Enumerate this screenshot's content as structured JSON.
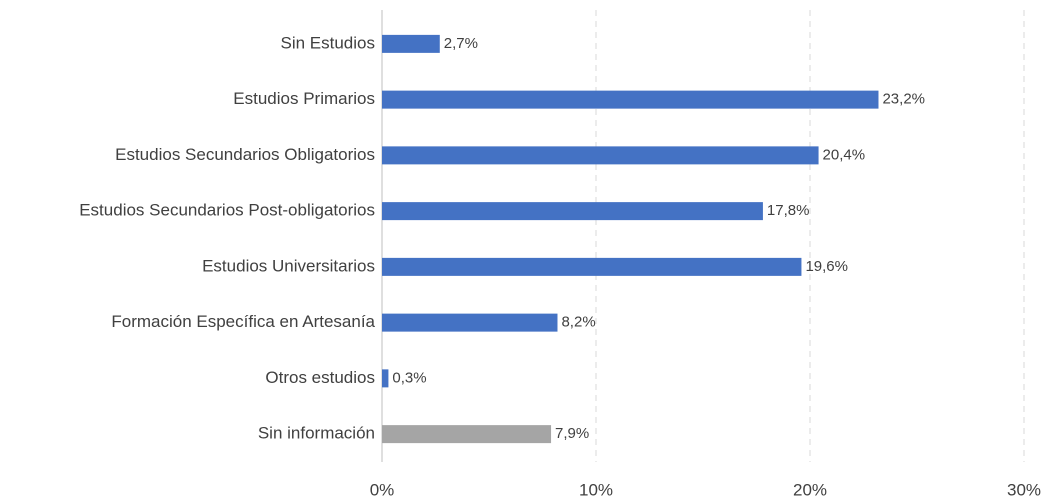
{
  "chart_data": {
    "type": "hbar",
    "categories": [
      "Sin Estudios",
      "Estudios Primarios",
      "Estudios Secundarios Obligatorios",
      "Estudios Secundarios Post-obligatorios",
      "Estudios Universitarios",
      "Formación Específica en Artesanía",
      "Otros estudios",
      "Sin información"
    ],
    "values": [
      2.7,
      23.2,
      20.4,
      17.8,
      19.6,
      8.2,
      0.3,
      7.9
    ],
    "value_labels": [
      "2,7%",
      "23,2%",
      "20,4%",
      "17,8%",
      "19,6%",
      "8,2%",
      "0,3%",
      "7,9%"
    ],
    "colors": [
      "#4472c4",
      "#4472c4",
      "#4472c4",
      "#4472c4",
      "#4472c4",
      "#4472c4",
      "#4472c4",
      "#a5a5a5"
    ],
    "xlim": [
      0,
      30
    ],
    "xticks": [
      {
        "value": 0,
        "label": "0%"
      },
      {
        "value": 10,
        "label": "10%"
      },
      {
        "value": 20,
        "label": "20%"
      },
      {
        "value": 30,
        "label": "30%"
      }
    ],
    "grid": true
  }
}
